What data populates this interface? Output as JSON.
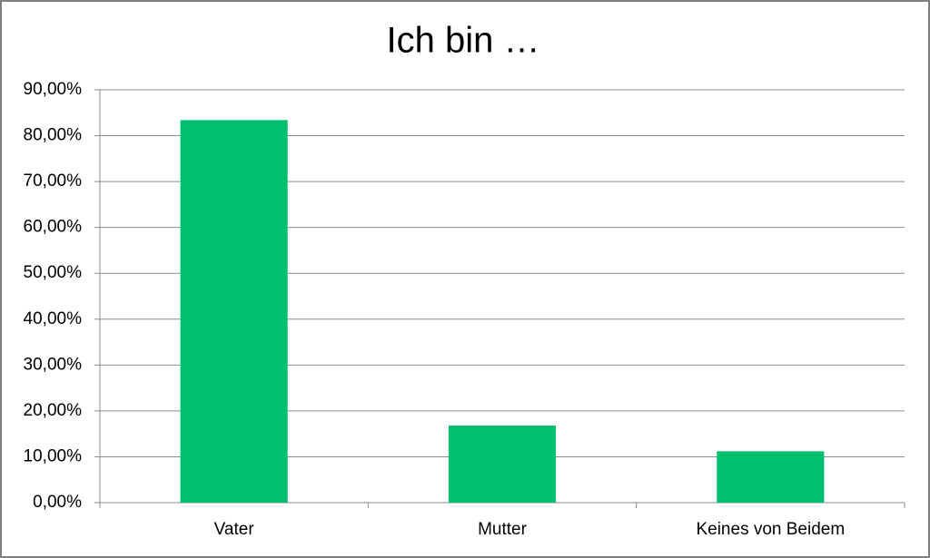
{
  "chart_data": {
    "type": "bar",
    "title": "Ich bin …",
    "categories": [
      "Vater",
      "Mutter",
      "Keines von Beidem"
    ],
    "values": [
      83.4,
      16.8,
      11.2
    ],
    "color": "#00bf6f",
    "ylim": [
      0,
      90
    ],
    "yticks": [
      {
        "value": 0,
        "label": "0,00%"
      },
      {
        "value": 10,
        "label": "10,00%"
      },
      {
        "value": 20,
        "label": "20,00%"
      },
      {
        "value": 30,
        "label": "30,00%"
      },
      {
        "value": 40,
        "label": "40,00%"
      },
      {
        "value": 50,
        "label": "50,00%"
      },
      {
        "value": 60,
        "label": "60,00%"
      },
      {
        "value": 70,
        "label": "70,00%"
      },
      {
        "value": 80,
        "label": "80,00%"
      },
      {
        "value": 90,
        "label": "90,00%"
      }
    ],
    "grid": true
  }
}
